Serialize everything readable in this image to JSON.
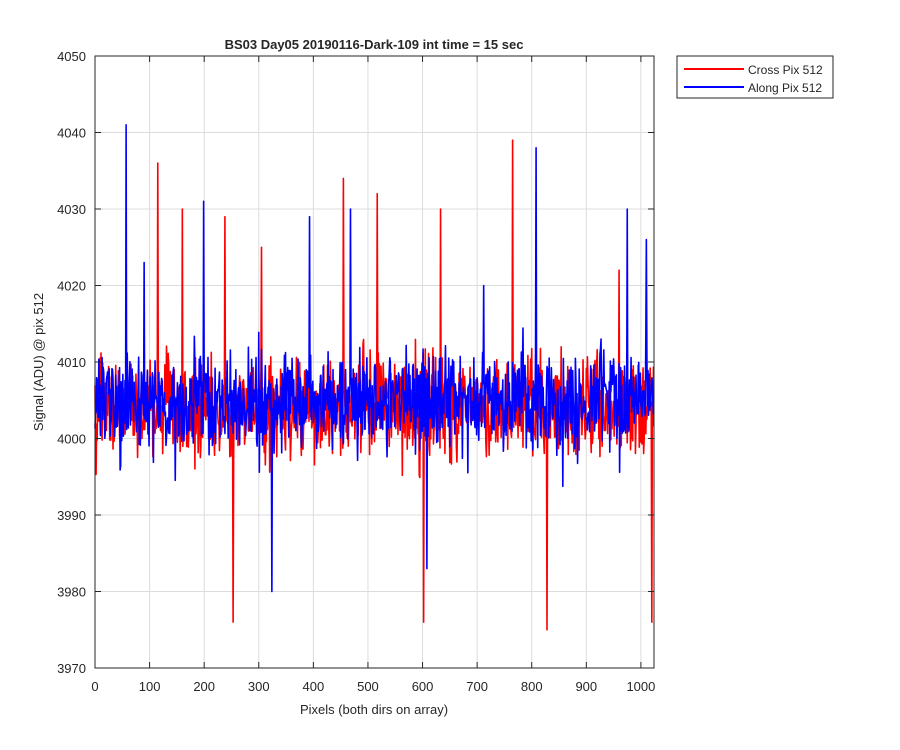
{
  "chart_data": {
    "type": "line",
    "title": "BS03 Day05 20190116-Dark-109 int time = 15 sec",
    "xlabel": "Pixels (both dirs on array)",
    "ylabel": "Signal (ADU) @ pix 512",
    "xlim": [
      0,
      1024
    ],
    "ylim": [
      3970,
      4050
    ],
    "x_ticks": [
      0,
      100,
      200,
      300,
      400,
      500,
      600,
      700,
      800,
      900,
      1000
    ],
    "y_ticks": [
      3970,
      3980,
      3990,
      4000,
      4010,
      4020,
      4030,
      4040,
      4050
    ],
    "grid": true,
    "legend": "outside-top-right",
    "series": [
      {
        "name": "Cross Pix 512",
        "color": "#ff0000",
        "mean": 4004,
        "points": 1024,
        "peaks": [
          [
            115,
            4036
          ],
          [
            160,
            4030
          ],
          [
            238,
            4029
          ],
          [
            253,
            3976
          ],
          [
            305,
            4025
          ],
          [
            455,
            4034
          ],
          [
            517,
            4032
          ],
          [
            602,
            3976
          ],
          [
            633,
            4030
          ],
          [
            765,
            4039
          ],
          [
            828,
            3975
          ],
          [
            960,
            4022
          ],
          [
            1020,
            3976
          ]
        ]
      },
      {
        "name": "Along Pix 512",
        "color": "#0000ff",
        "mean": 4005,
        "points": 1024,
        "peaks": [
          [
            57,
            4041
          ],
          [
            90,
            4023
          ],
          [
            199,
            4031
          ],
          [
            324,
            3980
          ],
          [
            393,
            4029
          ],
          [
            468,
            4030
          ],
          [
            608,
            3983
          ],
          [
            712,
            4020
          ],
          [
            808,
            4038
          ],
          [
            975,
            4030
          ],
          [
            1010,
            4026
          ]
        ]
      }
    ]
  }
}
